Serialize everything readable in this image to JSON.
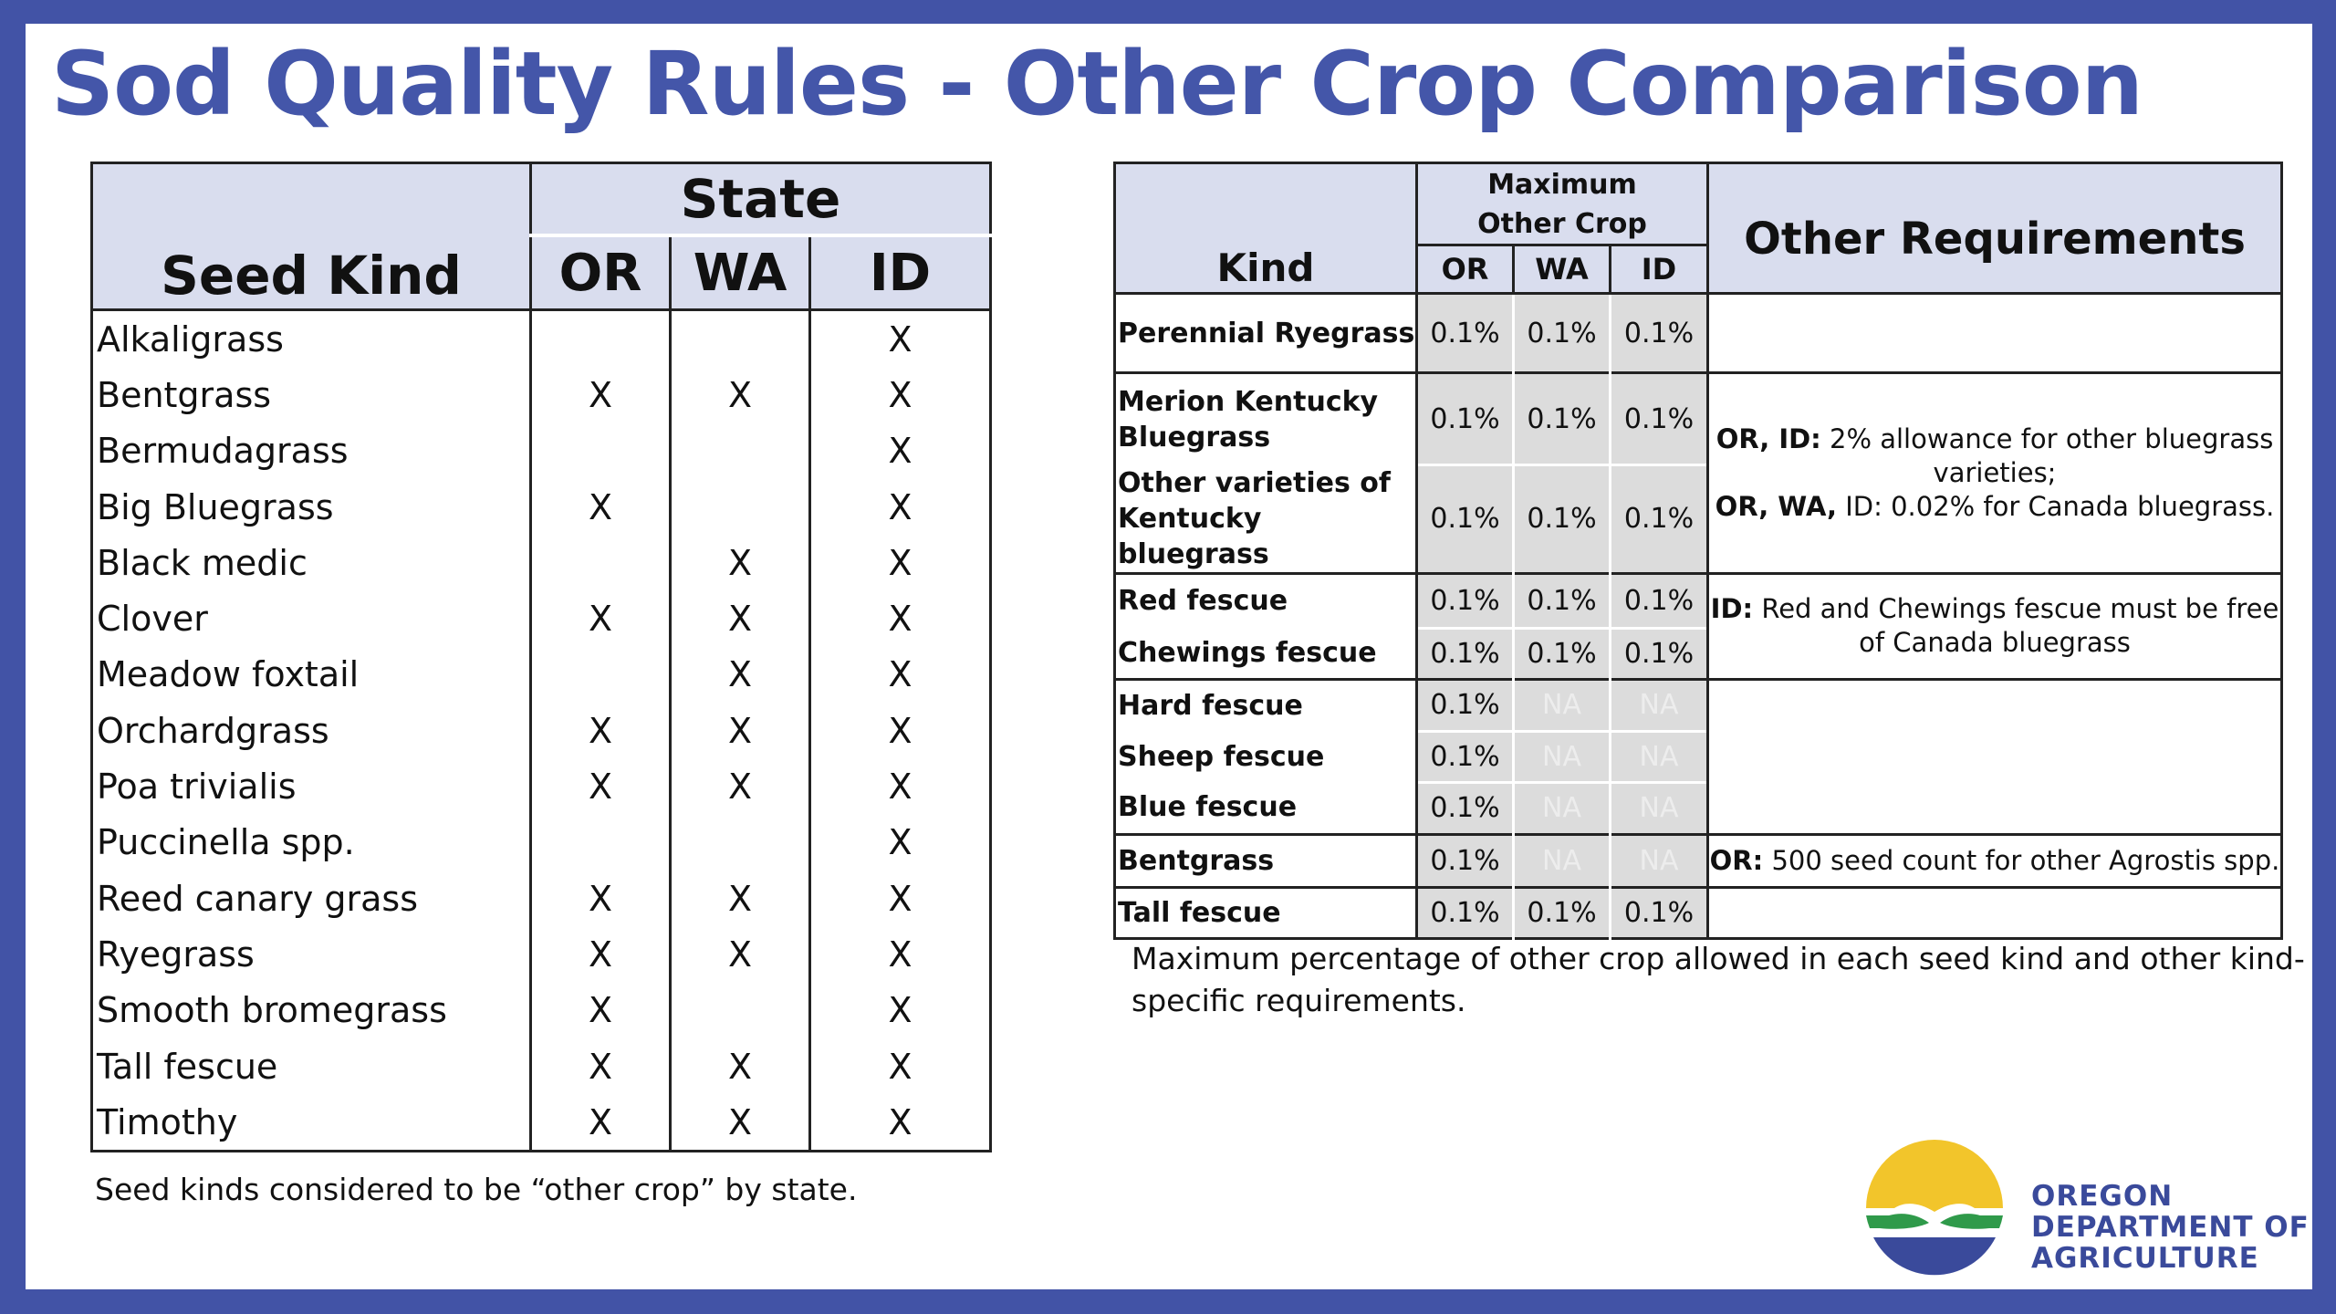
{
  "title": "Sod Quality Rules - Other Crop Comparison",
  "left_table": {
    "header_seed_kind": "Seed Kind",
    "header_state": "State",
    "states": [
      "OR",
      "WA",
      "ID"
    ],
    "rows": [
      {
        "kind": "Alkaligrass",
        "or": "",
        "wa": "",
        "id": "X"
      },
      {
        "kind": "Bentgrass",
        "or": "X",
        "wa": "X",
        "id": "X"
      },
      {
        "kind": "Bermudagrass",
        "or": "",
        "wa": "",
        "id": "X"
      },
      {
        "kind": "Big Bluegrass",
        "or": "X",
        "wa": "",
        "id": "X"
      },
      {
        "kind": "Black medic",
        "or": "",
        "wa": "X",
        "id": "X"
      },
      {
        "kind": "Clover",
        "or": "X",
        "wa": "X",
        "id": "X"
      },
      {
        "kind": "Meadow foxtail",
        "or": "",
        "wa": "X",
        "id": "X"
      },
      {
        "kind": "Orchardgrass",
        "or": "X",
        "wa": "X",
        "id": "X"
      },
      {
        "kind": "Poa trivialis",
        "or": "X",
        "wa": "X",
        "id": "X"
      },
      {
        "kind": "Puccinella spp.",
        "or": "",
        "wa": "",
        "id": "X"
      },
      {
        "kind": "Reed canary grass",
        "or": "X",
        "wa": "X",
        "id": "X"
      },
      {
        "kind": "Ryegrass",
        "or": "X",
        "wa": "X",
        "id": "X"
      },
      {
        "kind": "Smooth bromegrass",
        "or": "X",
        "wa": "",
        "id": "X"
      },
      {
        "kind": "Tall fescue",
        "or": "X",
        "wa": "X",
        "id": "X"
      },
      {
        "kind": "Timothy",
        "or": "X",
        "wa": "X",
        "id": "X"
      }
    ],
    "caption": "Seed kinds considered to be “other crop” by state."
  },
  "right_table": {
    "header_kind": "Kind",
    "header_max_line1": "Maximum",
    "header_max_line2": "Other Crop",
    "states": [
      "OR",
      "WA",
      "ID"
    ],
    "header_requirements": "Other Requirements",
    "rows": [
      {
        "kind": "Perennial Ryegrass",
        "or": "0.1%",
        "wa": "0.1%",
        "id": "0.1%"
      },
      {
        "kind": "Merion Kentucky Bluegrass",
        "or": "0.1%",
        "wa": "0.1%",
        "id": "0.1%"
      },
      {
        "kind": "Other varieties of Kentucky bluegrass",
        "or": "0.1%",
        "wa": "0.1%",
        "id": "0.1%"
      },
      {
        "kind": "Red fescue",
        "or": "0.1%",
        "wa": "0.1%",
        "id": "0.1%"
      },
      {
        "kind": "Chewings fescue",
        "or": "0.1%",
        "wa": "0.1%",
        "id": "0.1%"
      },
      {
        "kind": "Hard fescue",
        "or": "0.1%",
        "wa": "NA",
        "id": "NA"
      },
      {
        "kind": "Sheep fescue",
        "or": "0.1%",
        "wa": "NA",
        "id": "NA"
      },
      {
        "kind": "Blue fescue",
        "or": "0.1%",
        "wa": "NA",
        "id": "NA"
      },
      {
        "kind": "Bentgrass",
        "or": "0.1%",
        "wa": "NA",
        "id": "NA"
      },
      {
        "kind": "Tall fescue",
        "or": "0.1%",
        "wa": "0.1%",
        "id": "0.1%"
      }
    ],
    "req_bluegrass": {
      "label1": "OR, ID:",
      "text1": " 2% allowance for other bluegrass varieties;",
      "label2": "OR, WA,",
      "text2": " ID: 0.02% for Canada bluegrass."
    },
    "req_fescue": {
      "label": "ID:",
      "text": " Red and Chewings fescue must be free of Canada bluegrass"
    },
    "req_bentgrass": {
      "label": "OR:",
      "text": " 500 seed count for other Agrostis spp."
    },
    "caption": "Maximum percentage of other crop allowed in each seed kind and other kind-specific requirements."
  },
  "logo": {
    "line1": "OREGON",
    "line2": "DEPARTMENT OF",
    "line3": "AGRICULTURE"
  },
  "colors": {
    "frame": "#4253a6",
    "title": "#4456a9",
    "header_fill": "#d9ddee",
    "value_fill": "#dcdcdc",
    "logo_yellow": "#f2c52b",
    "logo_green": "#2f9a4a",
    "logo_blue": "#3a4a9b"
  }
}
